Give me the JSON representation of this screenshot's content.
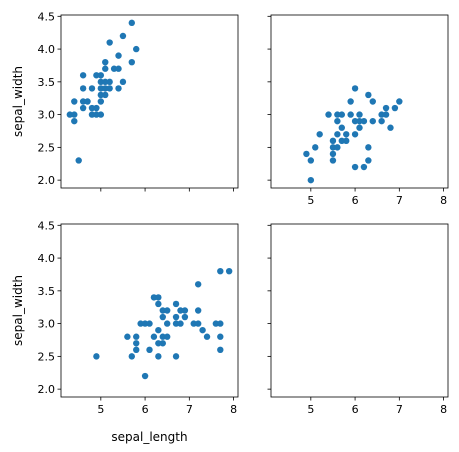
{
  "chart_data": {
    "type": "scatter",
    "grid": false,
    "marker_color": "#1f77b4",
    "xlim": [
      4.1,
      8.1
    ],
    "ylim": [
      1.88,
      4.52
    ],
    "x_ticks": [
      5,
      6,
      7,
      8
    ],
    "y_ticks": [
      "2.0",
      "2.5",
      "3.0",
      "3.5",
      "4.0",
      "4.5"
    ],
    "xlabel": "sepal_length",
    "ylabel": "sepal_width",
    "panels": [
      {
        "position": "top-left",
        "show_ylabel": true,
        "show_xlabel": false,
        "show_x_ticklabels": false,
        "show_y_ticklabels": true,
        "points": [
          [
            4.3,
            3.0
          ],
          [
            4.4,
            2.9
          ],
          [
            4.4,
            3.0
          ],
          [
            4.4,
            3.2
          ],
          [
            4.5,
            2.3
          ],
          [
            4.6,
            3.1
          ],
          [
            4.6,
            3.2
          ],
          [
            4.6,
            3.4
          ],
          [
            4.6,
            3.6
          ],
          [
            4.7,
            3.2
          ],
          [
            4.8,
            3.0
          ],
          [
            4.8,
            3.1
          ],
          [
            4.8,
            3.4
          ],
          [
            4.9,
            3.0
          ],
          [
            4.9,
            3.1
          ],
          [
            4.9,
            3.6
          ],
          [
            5.0,
            3.0
          ],
          [
            5.0,
            3.2
          ],
          [
            5.0,
            3.3
          ],
          [
            5.0,
            3.4
          ],
          [
            5.0,
            3.5
          ],
          [
            5.0,
            3.6
          ],
          [
            5.1,
            3.3
          ],
          [
            5.1,
            3.4
          ],
          [
            5.1,
            3.5
          ],
          [
            5.1,
            3.7
          ],
          [
            5.1,
            3.8
          ],
          [
            5.2,
            3.4
          ],
          [
            5.2,
            3.5
          ],
          [
            5.2,
            4.1
          ],
          [
            5.3,
            3.7
          ],
          [
            5.4,
            3.4
          ],
          [
            5.4,
            3.7
          ],
          [
            5.4,
            3.9
          ],
          [
            5.5,
            3.5
          ],
          [
            5.5,
            4.2
          ],
          [
            5.7,
            3.8
          ],
          [
            5.7,
            4.4
          ],
          [
            5.8,
            4.0
          ]
        ]
      },
      {
        "position": "top-right",
        "show_ylabel": false,
        "show_xlabel": false,
        "show_x_ticklabels": true,
        "show_y_ticklabels": false,
        "points": [
          [
            4.9,
            2.4
          ],
          [
            5.0,
            2.0
          ],
          [
            5.0,
            2.3
          ],
          [
            5.1,
            2.5
          ],
          [
            5.2,
            2.7
          ],
          [
            5.4,
            3.0
          ],
          [
            5.5,
            2.3
          ],
          [
            5.5,
            2.4
          ],
          [
            5.5,
            2.5
          ],
          [
            5.5,
            2.6
          ],
          [
            5.6,
            2.5
          ],
          [
            5.6,
            2.7
          ],
          [
            5.6,
            2.9
          ],
          [
            5.6,
            3.0
          ],
          [
            5.7,
            2.6
          ],
          [
            5.7,
            2.8
          ],
          [
            5.7,
            3.0
          ],
          [
            5.8,
            2.6
          ],
          [
            5.8,
            2.7
          ],
          [
            5.9,
            3.0
          ],
          [
            5.9,
            3.2
          ],
          [
            6.0,
            2.2
          ],
          [
            6.0,
            2.7
          ],
          [
            6.0,
            2.9
          ],
          [
            6.0,
            3.4
          ],
          [
            6.1,
            2.8
          ],
          [
            6.1,
            2.9
          ],
          [
            6.1,
            3.0
          ],
          [
            6.2,
            2.2
          ],
          [
            6.2,
            2.9
          ],
          [
            6.3,
            2.3
          ],
          [
            6.3,
            2.5
          ],
          [
            6.3,
            3.3
          ],
          [
            6.4,
            2.9
          ],
          [
            6.4,
            3.2
          ],
          [
            6.6,
            2.9
          ],
          [
            6.6,
            3.0
          ],
          [
            6.7,
            3.0
          ],
          [
            6.7,
            3.1
          ],
          [
            6.8,
            2.8
          ],
          [
            6.9,
            3.1
          ],
          [
            7.0,
            3.2
          ]
        ]
      },
      {
        "position": "bottom-left",
        "show_ylabel": true,
        "show_xlabel": true,
        "show_x_ticklabels": true,
        "show_y_ticklabels": true,
        "points": [
          [
            4.9,
            2.5
          ],
          [
            5.6,
            2.8
          ],
          [
            5.7,
            2.5
          ],
          [
            5.8,
            2.7
          ],
          [
            5.8,
            2.8
          ],
          [
            5.8,
            2.6
          ],
          [
            5.9,
            3.0
          ],
          [
            6.0,
            2.2
          ],
          [
            6.0,
            3.0
          ],
          [
            6.1,
            3.0
          ],
          [
            6.1,
            2.6
          ],
          [
            6.2,
            2.8
          ],
          [
            6.2,
            3.4
          ],
          [
            6.3,
            2.7
          ],
          [
            6.3,
            2.9
          ],
          [
            6.3,
            2.5
          ],
          [
            6.3,
            3.3
          ],
          [
            6.3,
            3.4
          ],
          [
            6.4,
            2.7
          ],
          [
            6.4,
            2.8
          ],
          [
            6.4,
            3.1
          ],
          [
            6.4,
            3.2
          ],
          [
            6.5,
            3.0
          ],
          [
            6.5,
            2.8
          ],
          [
            6.5,
            3.2
          ],
          [
            6.7,
            2.5
          ],
          [
            6.7,
            3.0
          ],
          [
            6.7,
            3.1
          ],
          [
            6.7,
            3.3
          ],
          [
            6.8,
            3.0
          ],
          [
            6.8,
            3.2
          ],
          [
            6.9,
            3.1
          ],
          [
            6.9,
            3.2
          ],
          [
            7.1,
            3.0
          ],
          [
            7.2,
            3.0
          ],
          [
            7.2,
            3.2
          ],
          [
            7.2,
            3.6
          ],
          [
            7.3,
            2.9
          ],
          [
            7.4,
            2.8
          ],
          [
            7.6,
            3.0
          ],
          [
            7.7,
            2.6
          ],
          [
            7.7,
            3.0
          ],
          [
            7.7,
            2.8
          ],
          [
            7.7,
            3.8
          ],
          [
            7.9,
            3.8
          ]
        ]
      },
      {
        "position": "bottom-right",
        "show_ylabel": false,
        "show_xlabel": false,
        "show_x_ticklabels": true,
        "show_y_ticklabels": false,
        "points": []
      }
    ]
  }
}
